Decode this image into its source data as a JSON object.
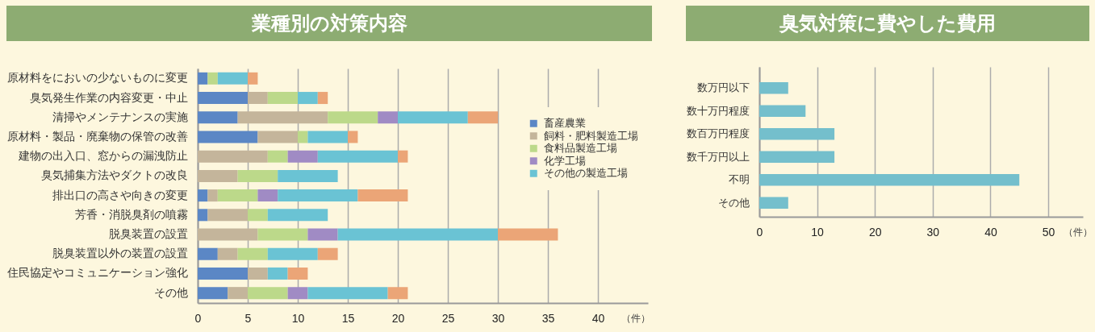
{
  "chart_data": [
    {
      "type": "bar",
      "orientation": "horizontal",
      "stacked": true,
      "title": "業種別の対策内容",
      "xlabel": "（件）",
      "categories": [
        "原材料をにおいの少ないものに変更",
        "臭気発生作業の内容変更・中止",
        "清掃やメンテナンスの実施",
        "原材料・製品・廃棄物の保管の改善",
        "建物の出入口、窓からの漏洩防止",
        "臭気捕集方法やダクトの改良",
        "排出口の高さや向きの変更",
        "芳香・消脱臭剤の噴霧",
        "脱臭装置の設置",
        "脱臭装置以外の装置の設置",
        "住民協定やコミュニケーション強化",
        "その他"
      ],
      "series": [
        {
          "name": "畜産農業",
          "color": "#5b87c5",
          "values": [
            1,
            5,
            4,
            6,
            0,
            0,
            1,
            1,
            0,
            2,
            5,
            3
          ]
        },
        {
          "name": "飼料・肥料製造工場",
          "color": "#c4b59b",
          "values": [
            0,
            2,
            9,
            4,
            7,
            4,
            1,
            4,
            6,
            2,
            2,
            2
          ]
        },
        {
          "name": "食料品製造工場",
          "color": "#bcd98a",
          "values": [
            1,
            3,
            5,
            1,
            2,
            4,
            4,
            2,
            5,
            3,
            0,
            4
          ]
        },
        {
          "name": "化学工場",
          "color": "#a08bc4",
          "values": [
            0,
            0,
            2,
            0,
            3,
            0,
            2,
            0,
            3,
            0,
            0,
            2
          ]
        },
        {
          "name": "その他の製造工場",
          "color": "#6ac3d4",
          "values": [
            3,
            2,
            7,
            4,
            8,
            6,
            8,
            6,
            16,
            5,
            2,
            8
          ]
        },
        {
          "color": "#eba577",
          "values": [
            1,
            1,
            3,
            1,
            1,
            0,
            5,
            0,
            6,
            2,
            2,
            2
          ]
        }
      ],
      "xlim": [
        0,
        45
      ],
      "xticks": [
        0,
        5,
        10,
        15,
        20,
        25,
        30,
        35,
        40
      ],
      "grid": "x",
      "legend": "right"
    },
    {
      "type": "bar",
      "orientation": "horizontal",
      "title": "臭気対策に費やした費用",
      "xlabel": "（件）",
      "categories": [
        "数万円以下",
        "数十万円程度",
        "数百万円程度",
        "数千万円以上",
        "不明",
        "その他"
      ],
      "values": [
        5,
        8,
        13,
        13,
        45,
        5
      ],
      "color": "#74bfcc",
      "xlim": [
        0,
        56
      ],
      "xticks": [
        0,
        10,
        20,
        30,
        40,
        50
      ],
      "grid": "x"
    }
  ]
}
